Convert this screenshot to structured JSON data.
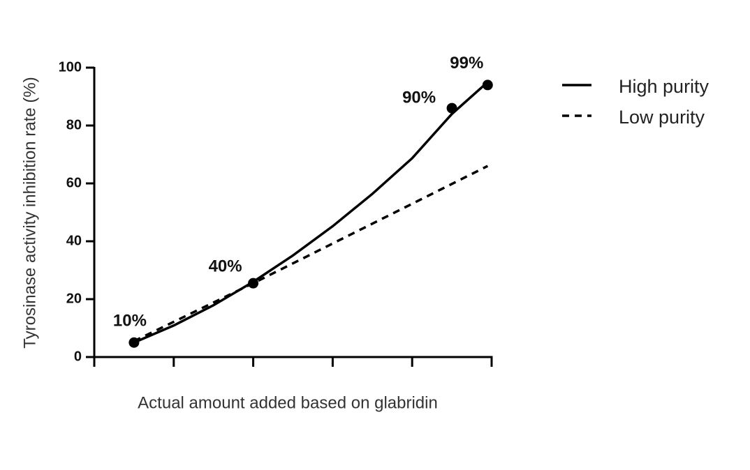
{
  "chart_data": {
    "type": "line",
    "xlabel": "Actual amount added based on glabridin",
    "ylabel": "Tyrosinase activity inhibition rate (%)",
    "xlim": [
      0,
      5
    ],
    "xticks": [
      0,
      1,
      2,
      3,
      4,
      5
    ],
    "ylim": [
      0,
      100
    ],
    "yticks": [
      0,
      20,
      40,
      60,
      80,
      100
    ],
    "series": [
      {
        "name": "High purity",
        "color": "#000000",
        "dash": false,
        "x": [
          0.5,
          1,
          1.5,
          2,
          2.5,
          3,
          3.5,
          4,
          4.5,
          4.95
        ],
        "values": [
          5,
          10.9,
          17.9,
          26,
          35.1,
          45.2,
          56.4,
          68.7,
          84,
          95
        ]
      },
      {
        "name": "Low purity",
        "color": "#000000",
        "dash": true,
        "x": [
          0.5,
          2,
          4.95
        ],
        "values": [
          5.5,
          25.5,
          66
        ]
      }
    ],
    "points": {
      "color": "#000000",
      "x": [
        0.5,
        2,
        4.5,
        4.95
      ],
      "values": [
        5,
        25.5,
        86,
        94
      ],
      "labels": [
        "10%",
        "40%",
        "90%",
        "99%"
      ]
    },
    "legend": "right"
  }
}
